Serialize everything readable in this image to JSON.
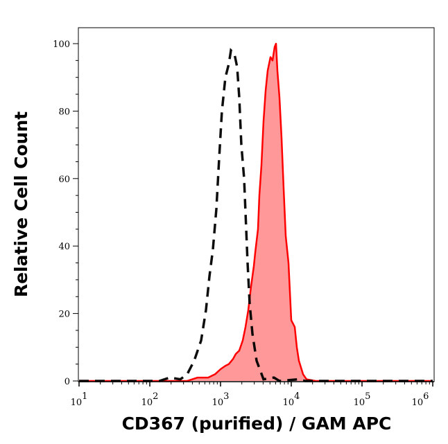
{
  "chart_data": {
    "type": "area",
    "title": "",
    "xlabel": "CD367 (purified) / GAM APC",
    "ylabel": "Relative Cell Count",
    "x_scale": "log",
    "xlim": [
      10,
      1000000
    ],
    "ylim": [
      0,
      105
    ],
    "grid": false,
    "legend": "none",
    "x_ticks": [
      {
        "value": 10,
        "base": "10",
        "exp": "1"
      },
      {
        "value": 100,
        "base": "10",
        "exp": "2"
      },
      {
        "value": 1000,
        "base": "10",
        "exp": "3"
      },
      {
        "value": 10000,
        "base": "10",
        "exp": "4"
      },
      {
        "value": 100000,
        "base": "10",
        "exp": "5"
      },
      {
        "value": 1000000,
        "base": "10",
        "exp": "6"
      }
    ],
    "y_ticks": [
      "0",
      "20",
      "40",
      "60",
      "80",
      "100"
    ],
    "series": [
      {
        "style": "dashed-line",
        "color": "#000000",
        "x": [
          10,
          137,
          192,
          270,
          338,
          424,
          531,
          622,
          697,
          780,
          873,
          955,
          1047,
          1172,
          1312,
          1403,
          1570,
          1718,
          1841,
          1968,
          2153,
          2307,
          2410,
          2582,
          2825,
          3236,
          4055,
          5689,
          6808,
          12530,
          15700,
          1000000
        ],
        "y": [
          0,
          0,
          1,
          0.5,
          2,
          6,
          12,
          21,
          31,
          39,
          51,
          66,
          80,
          90,
          94,
          98,
          97,
          93,
          84,
          70,
          60,
          45,
          35,
          23,
          14,
          6,
          0.5,
          1,
          0,
          0.5,
          0,
          0
        ]
      },
      {
        "style": "filled-area",
        "color": "#ff0000",
        "fill": "#ff9999",
        "x": [
          10,
          338,
          474,
          667,
          836,
          1000,
          1172,
          1312,
          1500,
          1643,
          1841,
          2061,
          2255,
          2467,
          2700,
          2957,
          3090,
          3382,
          3540,
          3785,
          4055,
          4337,
          4645,
          5080,
          5433,
          5821,
          6081,
          6368,
          6808,
          7295,
          7798,
          8356,
          9141,
          10000,
          11194,
          11970,
          12823,
          13709,
          14690,
          16440,
          22030,
          1000000
        ],
        "y": [
          0,
          0,
          1,
          1,
          2,
          3.5,
          4.5,
          5,
          6.5,
          8,
          9,
          12,
          16,
          21,
          28,
          34,
          38,
          45,
          55,
          64,
          77,
          86,
          92,
          96,
          95,
          99,
          100,
          92,
          84,
          72,
          57,
          43,
          35,
          18,
          16,
          10,
          6,
          4,
          2,
          0.5,
          0,
          0
        ]
      }
    ]
  }
}
